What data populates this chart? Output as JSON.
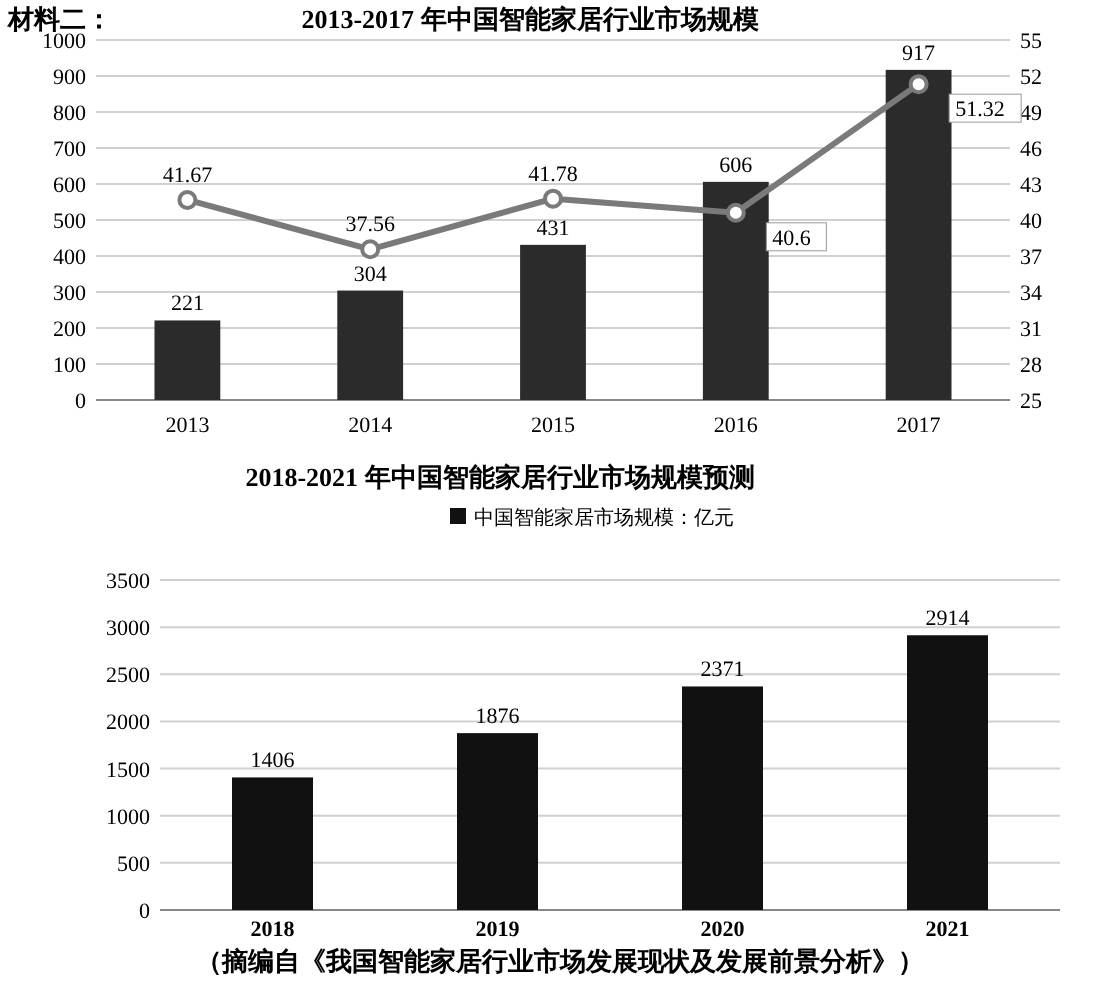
{
  "chart_data": [
    {
      "type": "bar",
      "title": "2013-2017 年中国智能家居行业市场规模",
      "annotations": [
        "材料二："
      ],
      "categories": [
        "2013",
        "2014",
        "2015",
        "2016",
        "2017"
      ],
      "series": [
        {
          "color": "#2b2b2b",
          "values": [
            221,
            304,
            431,
            606,
            917
          ]
        },
        {
          "type": "line",
          "axis": "y2",
          "color": "#7a7a7a",
          "marker": "circle",
          "values": [
            41.67,
            37.56,
            41.78,
            40.6,
            51.32
          ]
        }
      ],
      "ylim": [
        0,
        1000
      ],
      "yticks": [
        0,
        100,
        200,
        300,
        400,
        500,
        600,
        700,
        800,
        900,
        1000
      ],
      "y2lim": [
        25,
        55
      ],
      "y2ticks": [
        25,
        28,
        31,
        34,
        37,
        40,
        43,
        46,
        49,
        52,
        55
      ],
      "grid": "y",
      "data_labels": true
    },
    {
      "type": "bar",
      "title": "2018-2021 年中国智能家居行业市场规模预测",
      "annotations": [
        "（摘编自《我国智能家居行业市场发展现状及发展前景分析》）"
      ],
      "categories": [
        "2018",
        "2019",
        "2020",
        "2021"
      ],
      "series": [
        {
          "name": "中国智能家居市场规模：亿元",
          "color": "#111111",
          "values": [
            1406,
            1876,
            2371,
            2914
          ]
        }
      ],
      "ylim": [
        0,
        3500
      ],
      "yticks": [
        0,
        500,
        1000,
        1500,
        2000,
        2500,
        3000,
        3500
      ],
      "grid": "y",
      "legend": "top",
      "data_labels": true
    }
  ]
}
